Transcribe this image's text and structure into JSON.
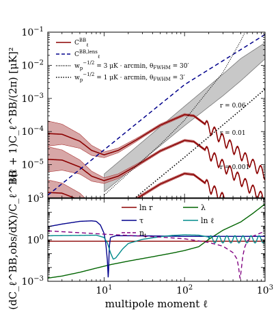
{
  "chart_data": [
    {
      "type": "line",
      "panel": "top",
      "xscale": "log",
      "yscale": "log",
      "xlim": [
        2,
        1000
      ],
      "ylim": [
        1e-06,
        0.1
      ],
      "ylabel": "ℓ(ℓ + 1)C_ℓ^BB/(2π) [μK]²",
      "xticks": [],
      "yticks": [
        {
          "v": 0.1,
          "b": "10",
          "e": "−1"
        },
        {
          "v": 0.01,
          "b": "10",
          "e": "−2"
        },
        {
          "v": 0.001,
          "b": "10",
          "e": "−3"
        },
        {
          "v": 0.0001,
          "b": "10",
          "e": "−4"
        },
        {
          "v": 1e-05,
          "b": "10",
          "e": "−5"
        }
      ],
      "legend_position": "top-left",
      "legend": [
        {
          "name": "C_ℓ^BB",
          "label": "C",
          "sup": "BB",
          "sub": "ℓ",
          "color": "#8b0000",
          "style": "solid"
        },
        {
          "name": "C_ℓ^BB,lens",
          "label": "C",
          "sup": "BB,lens",
          "sub": "ℓ",
          "color": "#00008b",
          "style": "dashed"
        },
        {
          "name": "w_p^{-1/2} = 3 μK·arcmin, θ_FWHM = 30′",
          "label": "w",
          "sub": "p",
          "sup": "−1/2",
          "rest": " = 3 μK · arcmin, θ",
          "sub2": "FWHM",
          "rest2": " = 30′",
          "color": "#000000",
          "style": "dotted-fine"
        },
        {
          "name": "w_p^{-1/2} = 1 μK·arcmin, θ_FWHM = 3′",
          "label": "w",
          "sub": "p",
          "sup": "−1/2",
          "rest": " = 1 μK · arcmin, θ",
          "sub2": "FWHM",
          "rest2": " = 3′",
          "color": "#000000",
          "style": "dotted"
        }
      ],
      "annotations": [
        "r = 0.06",
        "r = 0.01",
        "r = 0.001"
      ],
      "r_values": [
        0.06,
        0.01,
        0.001
      ],
      "primordial_model": {
        "ell": [
          2,
          3,
          5,
          7,
          10,
          15,
          25,
          50,
          100,
          130,
          200,
          300,
          500,
          700,
          1000
        ],
        "D_per_unit_r": [
          0.00145,
          0.00138,
          0.00085,
          0.00045,
          0.00033,
          0.00045,
          0.00092,
          0.0026,
          0.0054,
          0.005,
          0.0023,
          0.001,
          0.00036,
          0.00018,
          9e-05
        ]
      },
      "lensing_model": {
        "ell": [
          2,
          10,
          100,
          1000
        ],
        "D": [
          1.2e-06,
          2.8e-05,
          0.0026,
          0.085
        ]
      },
      "noise_30arcmin": {
        "ell": [
          10,
          50,
          100,
          200,
          300,
          500,
          700,
          1000
        ],
        "D": [
          1.2e-06,
          4.1e-05,
          0.00022,
          0.0018,
          0.0061,
          0.055,
          0.3,
          3.2
        ]
      },
      "noise_3arcmin": {
        "ell": [
          10,
          100,
          500,
          1000
        ],
        "D": [
          1.7e-07,
          1.67e-05,
          0.00045,
          0.0019
        ]
      },
      "band": {
        "ell": [
          10,
          100,
          300,
          500,
          1000
        ],
        "lower": [
          1.5e-06,
          0.00015,
          0.0012,
          0.0034,
          0.0156
        ],
        "upper": [
          5.2e-06,
          0.00058,
          0.0054,
          0.016,
          0.048
        ]
      },
      "error_band_factor": [
        {
          "ell": 2,
          "f": 2.4
        },
        {
          "ell": 10,
          "f": 1.22
        },
        {
          "ell": 30,
          "f": 1.1
        },
        {
          "ell": 100,
          "f": 1.08
        },
        {
          "ell": 1000,
          "f": 1.05
        }
      ]
    },
    {
      "type": "line",
      "panel": "bottom",
      "xscale": "log",
      "yscale": "log",
      "xlim": [
        2,
        1000
      ],
      "ylim": [
        0.001,
        1000
      ],
      "xlabel": "multipole moment ℓ",
      "ylabel": "(dC_ℓ^BB,obs/dX)/C_ℓ^BB",
      "xticks": [
        {
          "v": 10,
          "b": "10",
          "e": "1"
        },
        {
          "v": 100,
          "b": "10",
          "e": "2"
        },
        {
          "v": 1000,
          "b": "10",
          "e": "3"
        }
      ],
      "yticks": [
        {
          "v": 1000,
          "b": "10",
          "e": "3"
        },
        {
          "v": 1,
          "b": "10",
          "e": "0"
        },
        {
          "v": 0.001,
          "b": "10",
          "e": "−3"
        }
      ],
      "legend_position": "top-center",
      "series": [
        {
          "name": "ln r",
          "label": "ln r",
          "color": "#8b0000",
          "style": "solid",
          "ell": [
            2,
            1000
          ],
          "values": [
            0.8,
            0.8
          ]
        },
        {
          "name": "λ",
          "label": "λ",
          "color": "#006400",
          "style": "solid",
          "ell": [
            2,
            3,
            5,
            8,
            12,
            20,
            40,
            70,
            100,
            150,
            200,
            300,
            500,
            700,
            1000
          ],
          "values": [
            0.0017,
            0.0024,
            0.0045,
            0.009,
            0.016,
            0.029,
            0.06,
            0.11,
            0.17,
            0.32,
            1.1,
            5,
            20,
            80,
            400
          ]
        },
        {
          "name": "τ",
          "label": "τ",
          "color": "#00008b",
          "style": "solid",
          "ell": [
            2,
            3,
            5,
            7,
            8,
            9,
            10,
            10.5,
            11,
            11.3,
            11.6,
            12,
            14,
            20,
            50,
            100,
            1000
          ],
          "values": [
            9,
            14,
            22,
            24,
            22,
            12,
            3,
            0.6,
            0.03,
            0.0012,
            0.3,
            1.5,
            2,
            2,
            1.9,
            1.8,
            1.8
          ]
        },
        {
          "name": "ln ℓ",
          "label": "ln ℓ",
          "color": "#008b8b",
          "style": "solid",
          "ell": [
            2,
            5,
            8,
            10,
            11,
            12,
            13,
            14,
            17,
            20,
            30,
            50,
            70,
            100,
            150,
            200,
            250
          ],
          "values": [
            2.0,
            2.1,
            2.2,
            1.5,
            0.6,
            0.12,
            0.04,
            0.05,
            0.22,
            0.55,
            1.1,
            1.7,
            2.1,
            2.3,
            2.2,
            1.6,
            0.9
          ]
        },
        {
          "name": "n_t",
          "label": "n",
          "sub": "t",
          "color": "#800080",
          "style": "dashed",
          "ell": [
            2,
            5,
            10,
            20,
            50,
            100,
            200,
            300,
            400,
            450,
            470,
            490,
            510,
            530,
            560,
            600,
            700,
            1000
          ],
          "values": [
            4.5,
            3.3,
            2.6,
            2.1,
            1.6,
            1.2,
            0.65,
            0.35,
            0.12,
            0.04,
            0.01,
            0.0013,
            0.01,
            0.07,
            0.3,
            0.8,
            1.8,
            4.3
          ]
        }
      ],
      "osc_start_lnl": 200,
      "osc_amp": 0.6,
      "osc_period": 0.1
    }
  ]
}
